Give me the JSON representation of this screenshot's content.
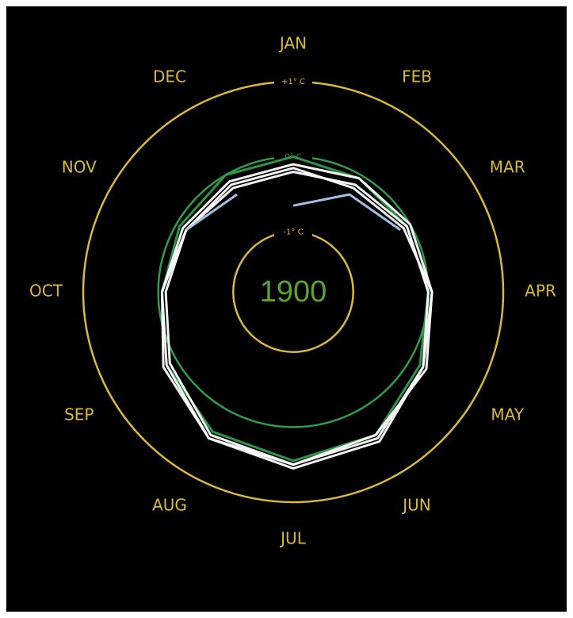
{
  "chart_data": {
    "type": "polar-line",
    "center_label": "1900",
    "center_label_color": "#5aa32e",
    "categories": [
      "JAN",
      "FEB",
      "MAR",
      "APR",
      "MAY",
      "JUN",
      "JUL",
      "AUG",
      "SEP",
      "OCT",
      "NOV",
      "DEC"
    ],
    "rlim": [
      -1.8,
      1
    ],
    "rticks": [
      {
        "value": -1,
        "label": "-1° C"
      },
      {
        "value": 0,
        "label": "0° C"
      },
      {
        "value": 1,
        "label": "+1° C"
      }
    ],
    "tick_colors": [
      "#d9b93a",
      "#2e9e4a",
      "#d9b93a"
    ],
    "label_color": "#d9b93a",
    "series": [
      {
        "color": "#2e9e4a",
        "values": [
          0.0,
          -0.05,
          -0.05,
          0.0,
          0.15,
          0.4,
          0.45,
          0.35,
          0.15,
          -0.05,
          -0.05,
          0.0
        ]
      },
      {
        "color": "#ffffff",
        "values": [
          -0.2,
          -0.15,
          -0.05,
          0.0,
          0.2,
          0.45,
          0.5,
          0.4,
          0.1,
          -0.1,
          -0.15,
          -0.2
        ]
      },
      {
        "color": "#ffffff",
        "values": [
          -0.15,
          -0.2,
          -0.1,
          0.05,
          0.25,
          0.4,
          0.5,
          0.45,
          0.2,
          -0.05,
          -0.15,
          -0.15
        ]
      },
      {
        "color": "#ffffff",
        "values": [
          -0.1,
          -0.05,
          0.0,
          0.05,
          0.2,
          0.5,
          0.55,
          0.45,
          0.15,
          -0.05,
          -0.1,
          -0.1
        ]
      },
      {
        "color": "#a8c8ee",
        "values": [
          -0.65,
          -0.3,
          -0.15,
          null,
          null,
          null,
          null,
          null,
          null,
          null,
          -0.15,
          -0.3
        ]
      }
    ]
  }
}
